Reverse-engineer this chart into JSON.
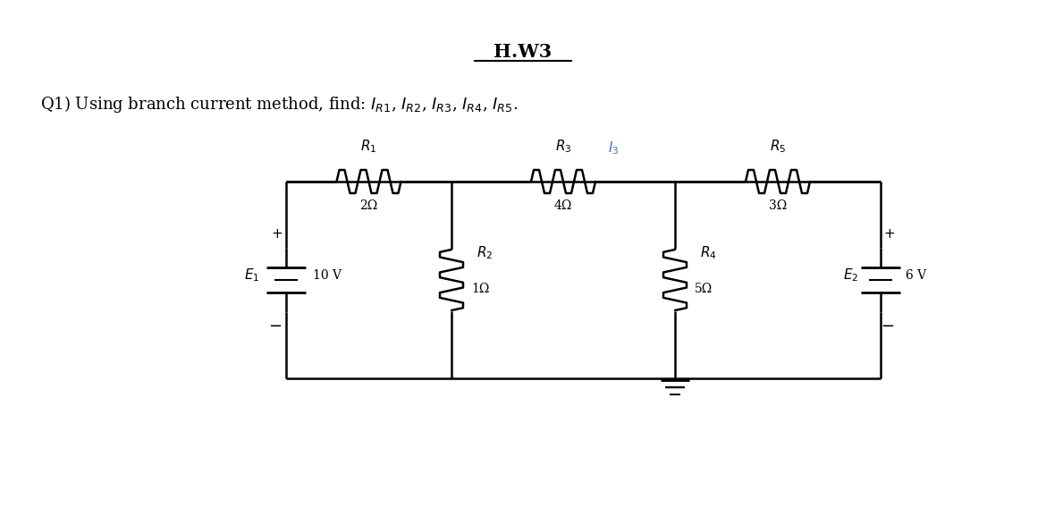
{
  "title": "H.W3",
  "bg_color": "#ffffff",
  "circuit_color": "#000000",
  "I3_color": "#4472c4",
  "R1_label": "$R_1$",
  "R1_val": "2Ω",
  "R2_label": "$R_2$",
  "R2_val": "1Ω",
  "R3_label": "$R_3$",
  "R3_val": "4Ω",
  "R4_label": "$R_4$",
  "R4_val": "5Ω",
  "R5_label": "$R_5$",
  "R5_val": "3Ω",
  "E1_label": "$E_1$",
  "E1_val": "10 V",
  "E2_label": "$E_2$",
  "E2_val": "6 V",
  "I3_label": "$I_3$"
}
